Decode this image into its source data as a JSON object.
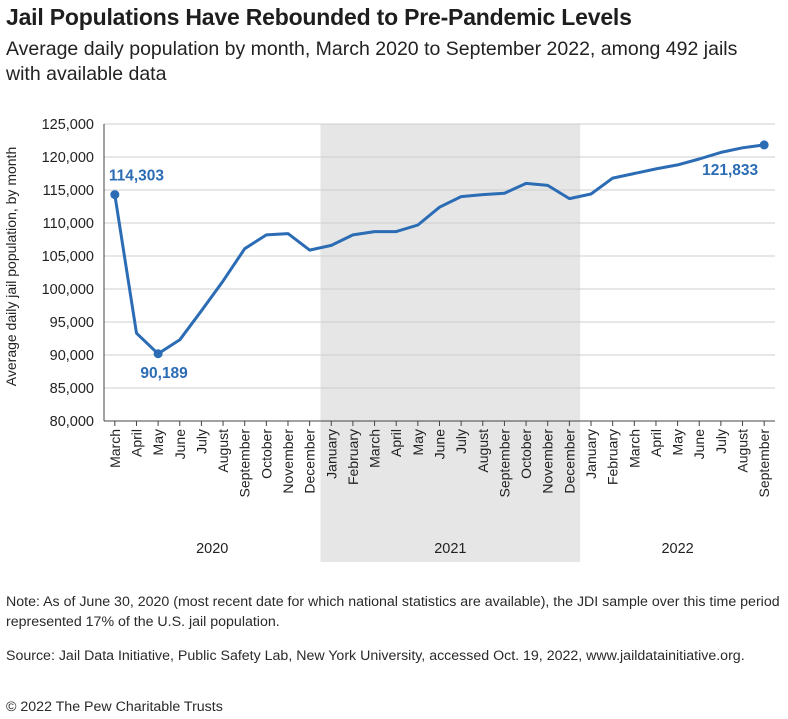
{
  "title": "Jail Populations Have Rebounded to Pre-Pandemic Levels",
  "subtitle": "Average daily population by month, March 2020 to September 2022, among 492 jails with available data",
  "note": "Note: As of June 30, 2020 (most recent date for which national statistics are available), the JDI sample over this time period represented 17% of the U.S. jail population.",
  "source": "Source: Jail Data Initiative, Public Safety Lab, New York University, accessed Oct. 19, 2022, www.jaildatainitiative.org.",
  "copyright": "© 2022 The Pew Charitable Trusts",
  "colors": {
    "line": "#2b6cb5",
    "label": "#2b6cb5",
    "shade": "#e6e6e6",
    "grid": "#cfcfcf",
    "axis": "#444444"
  },
  "chart_data": {
    "type": "line",
    "title": "Jail Populations Have Rebounded to Pre-Pandemic Levels",
    "ylabel": "Average daily jail population, by month",
    "xlabel": "",
    "ylim": [
      80000,
      125000
    ],
    "yticks": [
      80000,
      85000,
      90000,
      95000,
      100000,
      105000,
      110000,
      115000,
      120000,
      125000
    ],
    "ytick_labels": [
      "80,000",
      "85,000",
      "90,000",
      "95,000",
      "100,000",
      "105,000",
      "110,000",
      "115,000",
      "120,000",
      "125,000"
    ],
    "grid": true,
    "categories": [
      "March",
      "April",
      "May",
      "June",
      "July",
      "August",
      "September",
      "October",
      "November",
      "December",
      "January",
      "February",
      "March",
      "April",
      "May",
      "June",
      "July",
      "August",
      "September",
      "October",
      "November",
      "December",
      "January",
      "February",
      "March",
      "April",
      "May",
      "June",
      "July",
      "August",
      "September"
    ],
    "values": [
      114303,
      93300,
      90189,
      92300,
      96700,
      101200,
      106100,
      108200,
      108400,
      105900,
      106600,
      108200,
      108700,
      108700,
      109700,
      112400,
      114000,
      114300,
      114500,
      116000,
      115700,
      113700,
      114400,
      116800,
      117500,
      118200,
      118800,
      119700,
      120700,
      121400,
      121833
    ],
    "years": [
      {
        "label": "2020",
        "start": 0,
        "end": 9
      },
      {
        "label": "2021",
        "start": 10,
        "end": 21
      },
      {
        "label": "2022",
        "start": 22,
        "end": 30
      }
    ],
    "shaded_year": "2021",
    "annotations": [
      {
        "index": 0,
        "text": "114,303",
        "position": "above-right"
      },
      {
        "index": 2,
        "text": "90,189",
        "position": "below"
      },
      {
        "index": 30,
        "text": "121,833",
        "position": "below-left"
      }
    ]
  }
}
